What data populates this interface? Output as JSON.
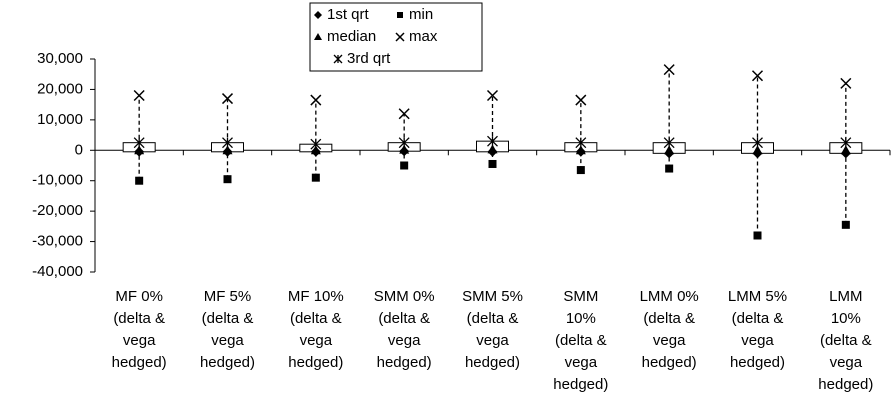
{
  "chart_data": {
    "type": "boxplot",
    "categories": [
      [
        "MF 0%",
        "(delta &",
        "vega",
        "hedged)"
      ],
      [
        "MF 5%",
        "(delta &",
        "vega",
        "hedged)"
      ],
      [
        "MF 10%",
        "(delta &",
        "vega",
        "hedged)"
      ],
      [
        "SMM 0%",
        "(delta &",
        "vega",
        "hedged)"
      ],
      [
        "SMM 5%",
        "(delta &",
        "vega",
        "hedged)"
      ],
      [
        "SMM",
        "10%",
        "(delta &",
        "vega",
        "hedged)"
      ],
      [
        "LMM 0%",
        "(delta &",
        "vega",
        "hedged)"
      ],
      [
        "LMM 5%",
        "(delta &",
        "vega",
        "hedged)"
      ],
      [
        "LMM",
        "10%",
        "(delta &",
        "vega",
        "hedged)"
      ]
    ],
    "series": [
      {
        "name": "1st qrt",
        "marker": "diamond",
        "color": "#000000",
        "values": [
          -500,
          -500,
          -500,
          -300,
          -500,
          -500,
          -1000,
          -1000,
          -1000
        ]
      },
      {
        "name": "min",
        "marker": "square",
        "color": "#000000",
        "values": [
          -10000,
          -9500,
          -9000,
          -5000,
          -4500,
          -6500,
          -6000,
          -28000,
          -24500
        ]
      },
      {
        "name": "median",
        "marker": "triangle",
        "color": "#000000",
        "values": [
          0,
          0,
          0,
          200,
          300,
          0,
          0,
          0,
          0
        ]
      },
      {
        "name": "max",
        "marker": "x",
        "color": "#000000",
        "values": [
          18000,
          17000,
          16500,
          12000,
          18000,
          16500,
          26500,
          24500,
          22000
        ]
      },
      {
        "name": "3rd qrt",
        "marker": "asterisk",
        "color": "#000000",
        "values": [
          2500,
          2500,
          2000,
          2500,
          3000,
          2500,
          2500,
          2500,
          2500
        ]
      }
    ],
    "ylim": [
      -40000,
      30000
    ],
    "yticks": [
      {
        "value": -40000,
        "label": "-40,000"
      },
      {
        "value": -30000,
        "label": "-30,000"
      },
      {
        "value": -20000,
        "label": "-20,000"
      },
      {
        "value": -10000,
        "label": "-10,000"
      },
      0,
      {
        "value": 10000,
        "label": "10,000"
      },
      {
        "value": 20000,
        "label": "20,000"
      },
      {
        "value": 30000,
        "label": "30,000"
      }
    ],
    "legend": "top"
  }
}
